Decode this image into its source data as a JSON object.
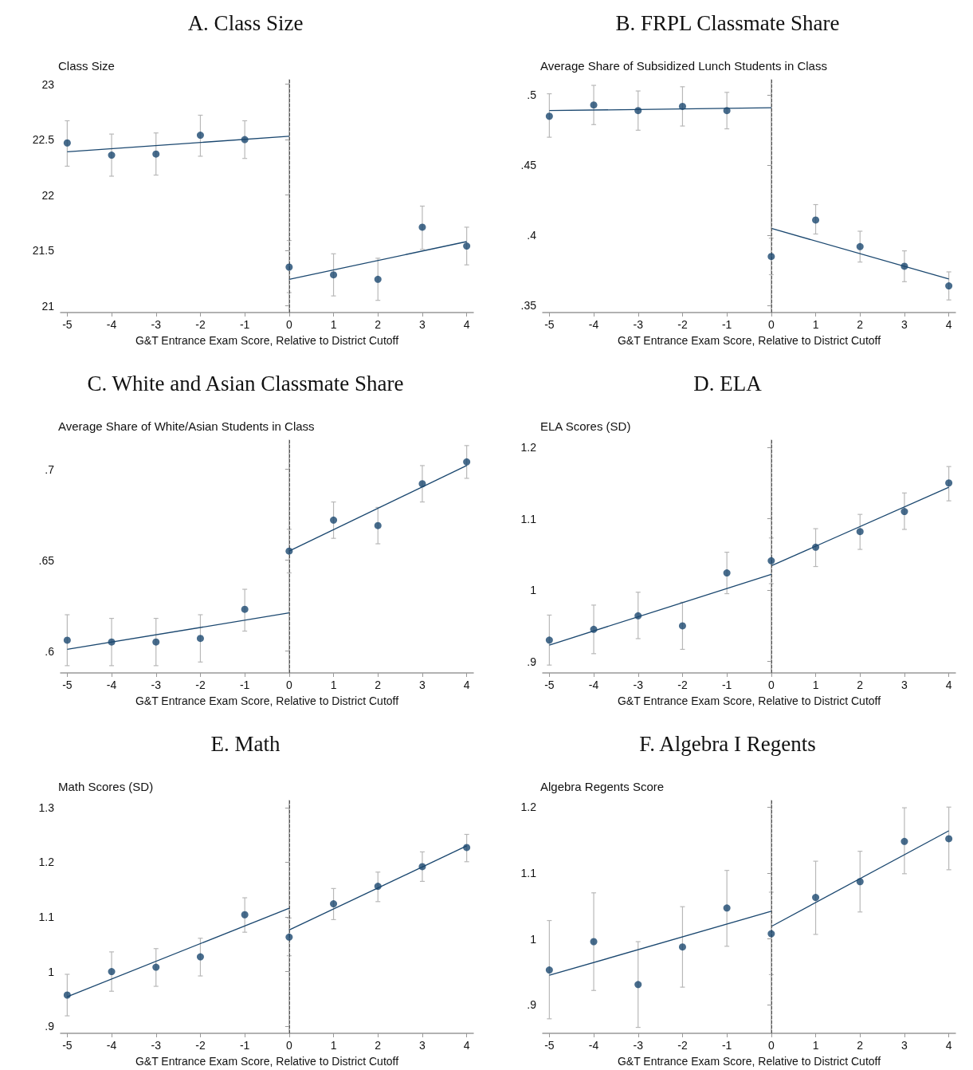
{
  "chart_data": [
    {
      "type": "scatter",
      "title": "A. Class Size",
      "ylabel": "Class Size",
      "xlabel": "G&T Entrance Exam Score, Relative to District Cutoff",
      "xlim": [
        -5.15,
        4.15
      ],
      "xticks": [
        -5,
        -4,
        -3,
        -2,
        -1,
        0,
        1,
        2,
        3,
        4
      ],
      "ylim": [
        20.94,
        23.04
      ],
      "yticks": [
        21,
        21.5,
        22,
        22.5,
        23
      ],
      "grid": false,
      "ref_lines": [
        {
          "axis": "x",
          "value": 0,
          "color": "#555555",
          "line_style": "dashed"
        }
      ],
      "series": [
        {
          "marker": "circle",
          "color": "#1a476f",
          "x": [
            -5,
            -4,
            -3,
            -2,
            -1,
            0,
            1,
            2,
            3,
            4
          ],
          "values": [
            22.47,
            22.36,
            22.37,
            22.54,
            22.5,
            21.35,
            21.28,
            21.24,
            21.71,
            21.54
          ],
          "errors": [
            [
              22.26,
              22.67
            ],
            [
              22.17,
              22.55
            ],
            [
              22.18,
              22.56
            ],
            [
              22.35,
              22.72
            ],
            [
              22.33,
              22.67
            ],
            [
              21.12,
              21.59
            ],
            [
              21.09,
              21.47
            ],
            [
              21.05,
              21.43
            ],
            [
              21.51,
              21.9
            ],
            [
              21.37,
              21.71
            ]
          ]
        },
        {
          "type": "line",
          "color": "#1a476f",
          "x": [
            -5,
            0
          ],
          "values": [
            22.39,
            22.53
          ]
        },
        {
          "type": "line",
          "color": "#1a476f",
          "x": [
            0,
            4
          ],
          "values": [
            21.24,
            21.58
          ]
        }
      ]
    },
    {
      "type": "scatter",
      "title": "B. FRPL Classmate Share",
      "ylabel": "Average Share of Subsidized Lunch Students in Class",
      "xlabel": "G&T Entrance Exam Score, Relative to District Cutoff",
      "xlim": [
        -5.15,
        4.15
      ],
      "xticks": [
        -5,
        -4,
        -3,
        -2,
        -1,
        0,
        1,
        2,
        3,
        4
      ],
      "ylim": [
        0.345,
        0.511
      ],
      "yticks": [
        {
          "value": 0.35,
          "label": ".35"
        },
        {
          "value": 0.4,
          "label": ".4"
        },
        {
          "value": 0.45,
          "label": ".45"
        },
        {
          "value": 0.5,
          "label": ".5"
        }
      ],
      "grid": false,
      "ref_lines": [
        {
          "axis": "x",
          "value": 0,
          "color": "#555555",
          "line_style": "dashed"
        }
      ],
      "series": [
        {
          "marker": "circle",
          "color": "#1a476f",
          "x": [
            -5,
            -4,
            -3,
            -2,
            -1,
            0,
            1,
            2,
            3,
            4
          ],
          "values": [
            0.485,
            0.493,
            0.489,
            0.492,
            0.489,
            0.385,
            0.411,
            0.392,
            0.378,
            0.364
          ],
          "errors": [
            [
              0.47,
              0.501
            ],
            [
              0.479,
              0.507
            ],
            [
              0.475,
              0.503
            ],
            [
              0.478,
              0.506
            ],
            [
              0.476,
              0.502
            ],
            [
              0.372,
              0.398
            ],
            [
              0.401,
              0.422
            ],
            [
              0.381,
              0.403
            ],
            [
              0.367,
              0.389
            ],
            [
              0.354,
              0.374
            ]
          ]
        },
        {
          "type": "line",
          "color": "#1a476f",
          "x": [
            -5,
            0
          ],
          "values": [
            0.489,
            0.491
          ]
        },
        {
          "type": "line",
          "color": "#1a476f",
          "x": [
            0,
            4
          ],
          "values": [
            0.405,
            0.369
          ]
        }
      ]
    },
    {
      "type": "scatter",
      "title": "C. White and Asian Classmate Share",
      "ylabel": "Average Share of White/Asian Students in Class",
      "xlabel": "G&T Entrance Exam Score, Relative to District Cutoff",
      "xlim": [
        -5.15,
        4.15
      ],
      "xticks": [
        -5,
        -4,
        -3,
        -2,
        -1,
        0,
        1,
        2,
        3,
        4
      ],
      "ylim": [
        0.588,
        0.716
      ],
      "yticks": [
        {
          "value": 0.6,
          "label": ".6"
        },
        {
          "value": 0.65,
          "label": ".65"
        },
        {
          "value": 0.7,
          "label": ".7"
        }
      ],
      "grid": false,
      "ref_lines": [
        {
          "axis": "x",
          "value": 0,
          "color": "#555555",
          "line_style": "dashed"
        }
      ],
      "series": [
        {
          "marker": "circle",
          "color": "#1a476f",
          "x": [
            -5,
            -4,
            -3,
            -2,
            -1,
            0,
            1,
            2,
            3,
            4
          ],
          "values": [
            0.606,
            0.605,
            0.605,
            0.607,
            0.623,
            0.655,
            0.672,
            0.669,
            0.692,
            0.704
          ],
          "errors": [
            [
              0.592,
              0.62
            ],
            [
              0.592,
              0.618
            ],
            [
              0.592,
              0.618
            ],
            [
              0.594,
              0.62
            ],
            [
              0.611,
              0.634
            ],
            [
              0.643,
              0.667
            ],
            [
              0.662,
              0.682
            ],
            [
              0.659,
              0.679
            ],
            [
              0.682,
              0.702
            ],
            [
              0.695,
              0.713
            ]
          ]
        },
        {
          "type": "line",
          "color": "#1a476f",
          "x": [
            -5,
            0
          ],
          "values": [
            0.601,
            0.621
          ]
        },
        {
          "type": "line",
          "color": "#1a476f",
          "x": [
            0,
            4
          ],
          "values": [
            0.655,
            0.702
          ]
        }
      ]
    },
    {
      "type": "scatter",
      "title": "D. ELA",
      "ylabel": "ELA Scores (SD)",
      "xlabel": "G&T Entrance Exam Score, Relative to District Cutoff",
      "xlim": [
        -5.15,
        4.15
      ],
      "xticks": [
        -5,
        -4,
        -3,
        -2,
        -1,
        0,
        1,
        2,
        3,
        4
      ],
      "ylim": [
        0.884,
        1.21
      ],
      "yticks": [
        {
          "value": 0.9,
          "label": ".9"
        },
        1,
        1.1,
        1.2
      ],
      "grid": false,
      "ref_lines": [
        {
          "axis": "x",
          "value": 0,
          "color": "#555555",
          "line_style": "dashed"
        }
      ],
      "series": [
        {
          "marker": "circle",
          "color": "#1a476f",
          "x": [
            -5,
            -4,
            -3,
            -2,
            -1,
            0,
            1,
            2,
            3,
            4
          ],
          "values": [
            0.93,
            0.945,
            0.964,
            0.95,
            1.024,
            1.041,
            1.06,
            1.082,
            1.11,
            1.15
          ],
          "errors": [
            [
              0.895,
              0.965
            ],
            [
              0.911,
              0.979
            ],
            [
              0.932,
              0.997
            ],
            [
              0.917,
              0.983
            ],
            [
              0.995,
              1.053
            ],
            [
              1.009,
              1.073
            ],
            [
              1.033,
              1.086
            ],
            [
              1.057,
              1.106
            ],
            [
              1.085,
              1.136
            ],
            [
              1.125,
              1.173
            ]
          ]
        },
        {
          "type": "line",
          "color": "#1a476f",
          "x": [
            -5,
            0
          ],
          "values": [
            0.923,
            1.022
          ]
        },
        {
          "type": "line",
          "color": "#1a476f",
          "x": [
            0,
            4
          ],
          "values": [
            1.034,
            1.144
          ]
        }
      ]
    },
    {
      "type": "scatter",
      "title": "E. Math",
      "ylabel": "Math Scores (SD)",
      "xlabel": "G&T Entrance Exam Score, Relative to District Cutoff",
      "xlim": [
        -5.15,
        4.15
      ],
      "xticks": [
        -5,
        -4,
        -3,
        -2,
        -1,
        0,
        1,
        2,
        3,
        4
      ],
      "ylim": [
        0.887,
        1.313
      ],
      "yticks": [
        {
          "value": 0.9,
          "label": ".9"
        },
        1,
        1.1,
        1.2,
        1.3
      ],
      "grid": false,
      "ref_lines": [
        {
          "axis": "x",
          "value": 0,
          "color": "#555555",
          "line_style": "dashed"
        }
      ],
      "series": [
        {
          "marker": "circle",
          "color": "#1a476f",
          "x": [
            -5,
            -4,
            -3,
            -2,
            -1,
            0,
            1,
            2,
            3,
            4
          ],
          "values": [
            0.957,
            1.0,
            1.008,
            1.027,
            1.104,
            1.063,
            1.124,
            1.156,
            1.192,
            1.227
          ],
          "errors": [
            [
              0.919,
              0.995
            ],
            [
              0.964,
              1.036
            ],
            [
              0.973,
              1.042
            ],
            [
              0.992,
              1.061
            ],
            [
              1.072,
              1.135
            ],
            [
              1.029,
              1.098
            ],
            [
              1.095,
              1.152
            ],
            [
              1.128,
              1.182
            ],
            [
              1.165,
              1.219
            ],
            [
              1.201,
              1.251
            ]
          ]
        },
        {
          "type": "line",
          "color": "#1a476f",
          "x": [
            -5,
            0
          ],
          "values": [
            0.954,
            1.116
          ]
        },
        {
          "type": "line",
          "color": "#1a476f",
          "x": [
            0,
            4
          ],
          "values": [
            1.076,
            1.23
          ]
        }
      ]
    },
    {
      "type": "scatter",
      "title": "F. Algebra I Regents",
      "ylabel": "Algebra Regents Score",
      "xlabel": "G&T Entrance Exam Score, Relative to District Cutoff",
      "xlim": [
        -5.15,
        4.15
      ],
      "xticks": [
        -5,
        -4,
        -3,
        -2,
        -1,
        0,
        1,
        2,
        3,
        4
      ],
      "ylim": [
        0.857,
        1.21
      ],
      "yticks": [
        {
          "value": 0.9,
          "label": ".9"
        },
        1,
        1.1,
        1.2
      ],
      "grid": false,
      "ref_lines": [
        {
          "axis": "x",
          "value": 0,
          "color": "#555555",
          "line_style": "dashed"
        }
      ],
      "series": [
        {
          "marker": "circle",
          "color": "#1a476f",
          "x": [
            -5,
            -4,
            -3,
            -2,
            -1,
            0,
            1,
            2,
            3,
            4
          ],
          "values": [
            0.953,
            0.996,
            0.931,
            0.988,
            1.047,
            1.008,
            1.063,
            1.087,
            1.148,
            1.152
          ],
          "errors": [
            [
              0.879,
              1.028
            ],
            [
              0.922,
              1.07
            ],
            [
              0.866,
              0.996
            ],
            [
              0.927,
              1.049
            ],
            [
              0.989,
              1.104
            ],
            [
              0.946,
              1.071
            ],
            [
              1.007,
              1.118
            ],
            [
              1.041,
              1.133
            ],
            [
              1.099,
              1.199
            ],
            [
              1.105,
              1.2
            ]
          ]
        },
        {
          "type": "line",
          "color": "#1a476f",
          "x": [
            -5,
            0
          ],
          "values": [
            0.945,
            1.042
          ]
        },
        {
          "type": "line",
          "color": "#1a476f",
          "x": [
            0,
            4
          ],
          "values": [
            1.019,
            1.164
          ]
        }
      ]
    }
  ]
}
